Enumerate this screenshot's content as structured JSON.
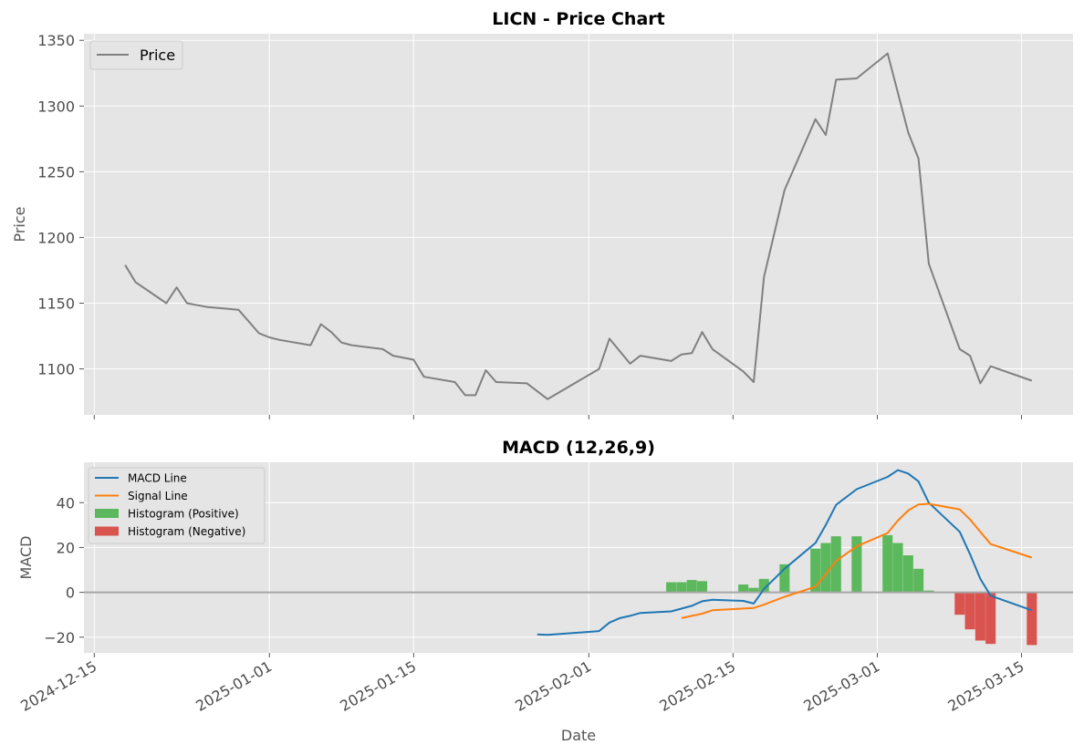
{
  "chart_data": [
    {
      "type": "line",
      "title": "LICN - Price Chart",
      "xlabel": "",
      "ylabel": "Price",
      "ylim": [
        1065,
        1355
      ],
      "yticks": [
        1100,
        1150,
        1200,
        1250,
        1300,
        1350
      ],
      "xlim": [
        "2024-12-14",
        "2025-03-20"
      ],
      "grid": true,
      "legend_position": "top-left",
      "series": [
        {
          "name": "Price",
          "color": "#808080",
          "points": [
            [
              "2024-12-18",
              1179
            ],
            [
              "2024-12-19",
              1166
            ],
            [
              "2024-12-22",
              1150
            ],
            [
              "2024-12-23",
              1162
            ],
            [
              "2024-12-24",
              1150
            ],
            [
              "2024-12-26",
              1147
            ],
            [
              "2024-12-29",
              1145
            ],
            [
              "2024-12-31",
              1127
            ],
            [
              "2025-01-01",
              1124
            ],
            [
              "2025-01-02",
              1122
            ],
            [
              "2025-01-05",
              1118
            ],
            [
              "2025-01-06",
              1134
            ],
            [
              "2025-01-07",
              1128
            ],
            [
              "2025-01-08",
              1120
            ],
            [
              "2025-01-09",
              1118
            ],
            [
              "2025-01-12",
              1115
            ],
            [
              "2025-01-13",
              1110
            ],
            [
              "2025-01-15",
              1107
            ],
            [
              "2025-01-16",
              1094
            ],
            [
              "2025-01-19",
              1090
            ],
            [
              "2025-01-20",
              1080
            ],
            [
              "2025-01-21",
              1080
            ],
            [
              "2025-01-22",
              1099
            ],
            [
              "2025-01-23",
              1090
            ],
            [
              "2025-01-26",
              1089
            ],
            [
              "2025-01-28",
              1077
            ],
            [
              "2025-02-02",
              1100
            ],
            [
              "2025-02-03",
              1123
            ],
            [
              "2025-02-05",
              1104
            ],
            [
              "2025-02-06",
              1110
            ],
            [
              "2025-02-09",
              1106
            ],
            [
              "2025-02-10",
              1111
            ],
            [
              "2025-02-11",
              1112
            ],
            [
              "2025-02-12",
              1128
            ],
            [
              "2025-02-13",
              1115
            ],
            [
              "2025-02-16",
              1098
            ],
            [
              "2025-02-17",
              1090
            ],
            [
              "2025-02-18",
              1170
            ],
            [
              "2025-02-20",
              1236
            ],
            [
              "2025-02-23",
              1290
            ],
            [
              "2025-02-24",
              1278
            ],
            [
              "2025-02-25",
              1320
            ],
            [
              "2025-02-27",
              1321
            ],
            [
              "2025-03-02",
              1340
            ],
            [
              "2025-03-04",
              1280
            ],
            [
              "2025-03-05",
              1260
            ],
            [
              "2025-03-06",
              1180
            ],
            [
              "2025-03-09",
              1115
            ],
            [
              "2025-03-10",
              1110
            ],
            [
              "2025-03-11",
              1089
            ],
            [
              "2025-03-12",
              1102
            ],
            [
              "2025-03-16",
              1091
            ]
          ]
        }
      ]
    },
    {
      "type": "line",
      "title": "MACD (12,26,9)",
      "xlabel": "Date",
      "ylabel": "MACD",
      "ylim": [
        -27,
        58
      ],
      "yticks": [
        -20,
        0,
        20,
        40
      ],
      "xlim": [
        "2024-12-14",
        "2025-03-20"
      ],
      "xticks": [
        "2024-12-15",
        "2025-01-01",
        "2025-01-15",
        "2025-02-01",
        "2025-02-15",
        "2025-03-01",
        "2025-03-15"
      ],
      "grid": true,
      "legend_position": "top-left",
      "zero_line": 0,
      "series": [
        {
          "name": "MACD Line",
          "color": "#1f77b4",
          "points": [
            [
              "2025-01-27",
              -18.8
            ],
            [
              "2025-01-28",
              -19.0
            ],
            [
              "2025-02-02",
              -17.3
            ],
            [
              "2025-02-03",
              -13.5
            ],
            [
              "2025-02-04",
              -11.5
            ],
            [
              "2025-02-05",
              -10.5
            ],
            [
              "2025-02-06",
              -9.2
            ],
            [
              "2025-02-09",
              -8.5
            ],
            [
              "2025-02-11",
              -6.0
            ],
            [
              "2025-02-12",
              -4.0
            ],
            [
              "2025-02-13",
              -3.3
            ],
            [
              "2025-02-16",
              -3.8
            ],
            [
              "2025-02-17",
              -5.0
            ],
            [
              "2025-02-18",
              1.5
            ],
            [
              "2025-02-20",
              10.5
            ],
            [
              "2025-02-23",
              22.0
            ],
            [
              "2025-02-24",
              30.0
            ],
            [
              "2025-02-25",
              39.0
            ],
            [
              "2025-02-27",
              46.0
            ],
            [
              "2025-03-02",
              51.5
            ],
            [
              "2025-03-03",
              54.5
            ],
            [
              "2025-03-04",
              53.0
            ],
            [
              "2025-03-05",
              49.5
            ],
            [
              "2025-03-06",
              40.0
            ],
            [
              "2025-03-09",
              27.0
            ],
            [
              "2025-03-10",
              17.0
            ],
            [
              "2025-03-11",
              6.0
            ],
            [
              "2025-03-12",
              -1.5
            ],
            [
              "2025-03-16",
              -8.0
            ]
          ]
        },
        {
          "name": "Signal Line",
          "color": "#ff7f0e",
          "points": [
            [
              "2025-02-10",
              -11.5
            ],
            [
              "2025-02-11",
              -10.5
            ],
            [
              "2025-02-12",
              -9.5
            ],
            [
              "2025-02-13",
              -8.0
            ],
            [
              "2025-02-17",
              -7.0
            ],
            [
              "2025-02-18",
              -5.5
            ],
            [
              "2025-02-20",
              -2.0
            ],
            [
              "2025-02-23",
              2.5
            ],
            [
              "2025-02-24",
              8.0
            ],
            [
              "2025-02-25",
              14.0
            ],
            [
              "2025-02-27",
              20.5
            ],
            [
              "2025-03-02",
              26.5
            ],
            [
              "2025-03-03",
              32.0
            ],
            [
              "2025-03-04",
              36.5
            ],
            [
              "2025-03-05",
              39.2
            ],
            [
              "2025-03-06",
              39.5
            ],
            [
              "2025-03-09",
              37.0
            ],
            [
              "2025-03-10",
              32.5
            ],
            [
              "2025-03-11",
              27.0
            ],
            [
              "2025-03-12",
              21.5
            ],
            [
              "2025-03-16",
              15.5
            ]
          ]
        }
      ],
      "histogram": [
        {
          "name": "Histogram (Positive)",
          "color": "#5cb85c",
          "bars": [
            [
              "2025-02-09",
              4.5
            ],
            [
              "2025-02-10",
              4.5
            ],
            [
              "2025-02-11",
              5.5
            ],
            [
              "2025-02-12",
              5.0
            ],
            [
              "2025-02-16",
              3.5
            ],
            [
              "2025-02-17",
              2.0
            ],
            [
              "2025-02-18",
              6.0
            ],
            [
              "2025-02-20",
              12.5
            ],
            [
              "2025-02-23",
              19.5
            ],
            [
              "2025-02-24",
              22.0
            ],
            [
              "2025-02-25",
              25.0
            ],
            [
              "2025-02-27",
              25.0
            ],
            [
              "2025-03-02",
              25.5
            ],
            [
              "2025-03-03",
              22.0
            ],
            [
              "2025-03-04",
              16.5
            ],
            [
              "2025-03-05",
              10.5
            ],
            [
              "2025-03-06",
              0.8
            ]
          ]
        },
        {
          "name": "Histogram (Negative)",
          "color": "#d9534f",
          "bars": [
            [
              "2025-03-09",
              -10.0
            ],
            [
              "2025-03-10",
              -16.5
            ],
            [
              "2025-03-11",
              -21.5
            ],
            [
              "2025-03-12",
              -23.0
            ],
            [
              "2025-03-16",
              -23.5
            ]
          ]
        }
      ]
    }
  ]
}
